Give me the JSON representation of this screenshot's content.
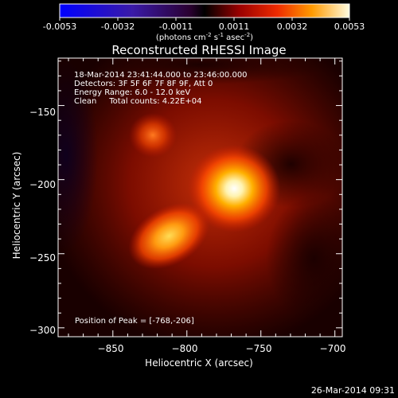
{
  "colorbar": {
    "tick_labels": [
      "-0.0053",
      "-0.0032",
      "-0.0011",
      "0.0011",
      "0.0032",
      "0.0053"
    ],
    "units_line": "(photons cm",
    "units_exp1": "-2",
    "units_mid": " s",
    "units_exp2": "-1",
    "units_end": " asec",
    "units_exp3": "-2",
    "units_close": ")"
  },
  "title": "Reconstructed RHESSI Image",
  "info": {
    "line1": "18-Mar-2014 23:41:44.000 to 23:46:00.000",
    "line2": "Detectors: 3F 5F 6F 7F 8F 9F, Att 0",
    "line3": "Energy Range: 6.0 - 12.0 keV",
    "line4": "Clean     Total counts: 4.22E+04"
  },
  "peak_label": "Position of Peak = [-768,-206]",
  "axes": {
    "xlabel": "Heliocentric X (arcsec)",
    "ylabel": "Heliocentric Y (arcsec)",
    "xlim": [
      -887,
      -695
    ],
    "ylim": [
      -306,
      -118
    ],
    "xticks": [
      -850,
      -800,
      -750,
      -700
    ],
    "yticks": [
      -150,
      -200,
      -250,
      -300
    ],
    "xtick_labels": [
      "−850",
      "−800",
      "−750",
      "−700"
    ],
    "ytick_labels": [
      "−150",
      "−200",
      "−250",
      "−300"
    ]
  },
  "image_sources": [
    {
      "x": -768,
      "y": -206,
      "relative_intensity": 1.0
    },
    {
      "x": -812,
      "y": -238,
      "relative_intensity": 0.8
    },
    {
      "x": -823,
      "y": -170,
      "relative_intensity": 0.45
    }
  ],
  "timestamp": "26-Mar-2014 09:31"
}
